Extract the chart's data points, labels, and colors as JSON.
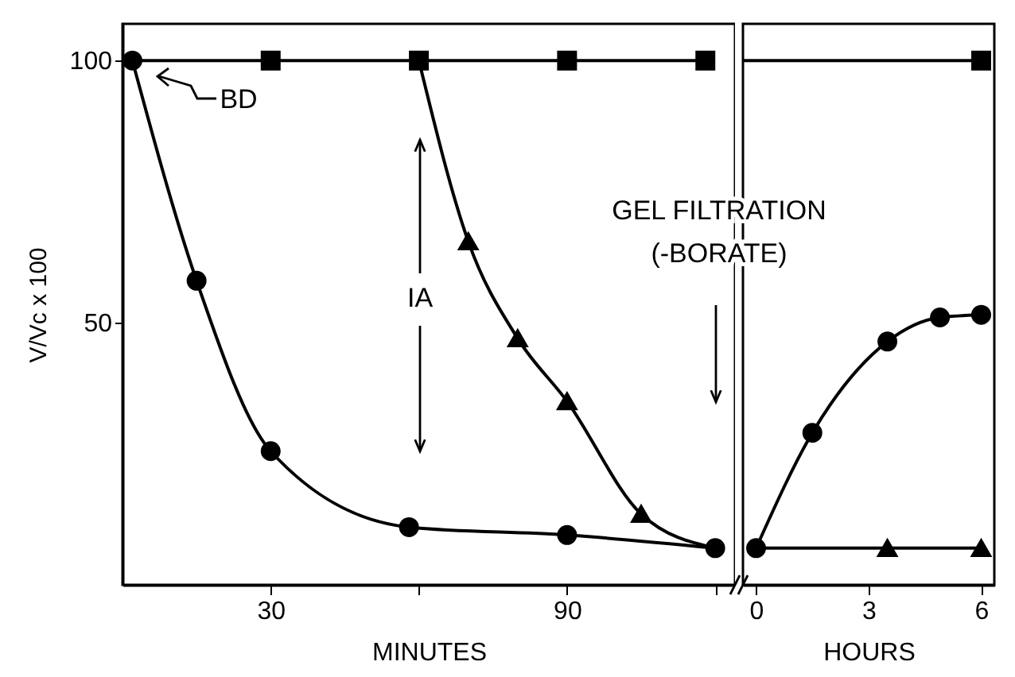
{
  "chart_data": [
    {
      "type": "line",
      "xlabel": "MINUTES",
      "ylabel": "V/Vc x 100",
      "xlim": [
        0,
        124
      ],
      "ylim": [
        0,
        107
      ],
      "xticks": [
        30,
        {
          "value": 60,
          "label": null
        },
        90,
        {
          "value": 120,
          "label": null
        }
      ],
      "yticks": [
        50,
        100
      ],
      "series": [
        {
          "color": "#000000",
          "x": [
            2,
            118
          ],
          "values": [
            100,
            100
          ]
        },
        {
          "type": "scatter",
          "color": "#000000",
          "marker": "square",
          "x": [
            30,
            60,
            90,
            118
          ],
          "values": [
            100,
            100,
            100,
            100
          ]
        },
        {
          "color": "#000000",
          "x": [
            60,
            70,
            80,
            90,
            105,
            120
          ],
          "values": [
            100,
            65.5,
            47,
            35,
            13.5,
            7
          ]
        },
        {
          "type": "scatter",
          "color": "#000000",
          "marker": "triangle",
          "x": [
            70,
            80,
            90,
            105
          ],
          "values": [
            65.5,
            47,
            35,
            13.5
          ]
        },
        {
          "color": "#000000",
          "marker": "circle",
          "x": [
            2,
            15,
            30,
            58,
            90,
            120
          ],
          "values": [
            100,
            58,
            25.5,
            11,
            9.5,
            7
          ]
        }
      ],
      "annotations": [
        "BD",
        "IA",
        "GEL FILTRATION",
        "(-BORATE)"
      ]
    },
    {
      "type": "line",
      "xlabel": "HOURS",
      "xlim": [
        -0.35,
        6.35
      ],
      "ylim": [
        0,
        107
      ],
      "xticks": [
        0,
        3,
        6
      ],
      "tick_labels": "x",
      "series": [
        {
          "color": "#000000",
          "x": [
            -0.35,
            6
          ],
          "values": [
            100,
            100
          ]
        },
        {
          "type": "scatter",
          "color": "#000000",
          "marker": "square",
          "x": [
            6
          ],
          "values": [
            100
          ]
        },
        {
          "color": "#000000",
          "x": [
            0,
            6
          ],
          "values": [
            7,
            7
          ]
        },
        {
          "type": "scatter",
          "color": "#000000",
          "marker": "triangle",
          "x": [
            3.5,
            6
          ],
          "values": [
            7,
            7
          ]
        },
        {
          "color": "#000000",
          "marker": "circle",
          "x": [
            0,
            1.5,
            3.5,
            4.9,
            6
          ],
          "values": [
            7,
            29,
            46.4,
            51,
            51.5
          ]
        }
      ]
    }
  ]
}
